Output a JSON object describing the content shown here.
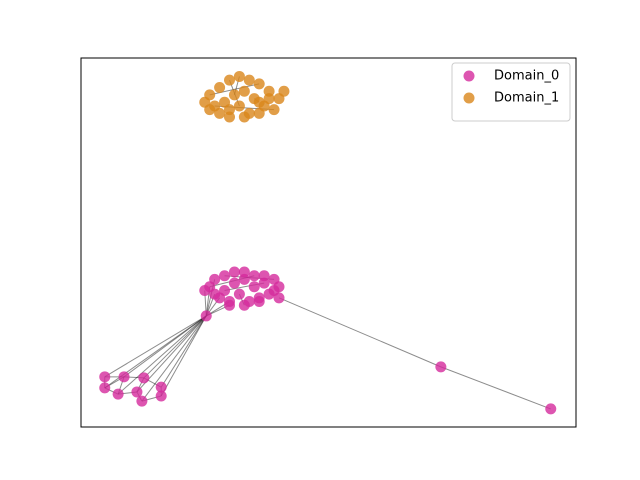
{
  "chart_data": {
    "type": "network",
    "xlim": [
      0,
      1
    ],
    "ylim": [
      0,
      1
    ],
    "legend": "upper right",
    "series": [
      {
        "name": "Domain_0",
        "color": "#d42a9c",
        "x": [
          0.26,
          0.27,
          0.29,
          0.31,
          0.33,
          0.35,
          0.37,
          0.39,
          0.4,
          0.27,
          0.29,
          0.31,
          0.33,
          0.35,
          0.37,
          0.39,
          0.28,
          0.3,
          0.32,
          0.34,
          0.36,
          0.38,
          0.3,
          0.33,
          0.36,
          0.25,
          0.4,
          0.253,
          0.048,
          0.048,
          0.087,
          0.075,
          0.127,
          0.113,
          0.123,
          0.162,
          0.162,
          0.727,
          0.949
        ],
        "y": [
          0.38,
          0.4,
          0.41,
          0.42,
          0.42,
          0.41,
          0.41,
          0.4,
          0.38,
          0.36,
          0.37,
          0.39,
          0.4,
          0.38,
          0.39,
          0.37,
          0.35,
          0.34,
          0.36,
          0.34,
          0.35,
          0.36,
          0.33,
          0.33,
          0.34,
          0.37,
          0.35,
          0.301,
          0.136,
          0.106,
          0.136,
          0.089,
          0.133,
          0.095,
          0.07,
          0.108,
          0.084,
          0.163,
          0.049
        ],
        "edges": [
          [
            27,
            28
          ],
          [
            27,
            29
          ],
          [
            27,
            30
          ],
          [
            27,
            31
          ],
          [
            27,
            32
          ],
          [
            27,
            33
          ],
          [
            27,
            34
          ],
          [
            27,
            35
          ],
          [
            27,
            36
          ],
          [
            27,
            0
          ],
          [
            27,
            1
          ],
          [
            27,
            9
          ],
          [
            27,
            16
          ],
          [
            27,
            17
          ],
          [
            27,
            22
          ],
          [
            27,
            25
          ],
          [
            28,
            30
          ],
          [
            28,
            29
          ],
          [
            30,
            32
          ],
          [
            29,
            31
          ],
          [
            31,
            33
          ],
          [
            32,
            35
          ],
          [
            33,
            34
          ],
          [
            35,
            36
          ],
          [
            30,
            31
          ],
          [
            32,
            33
          ],
          [
            34,
            36
          ],
          [
            29,
            30
          ],
          [
            26,
            37
          ],
          [
            37,
            38
          ],
          [
            0,
            5
          ],
          [
            2,
            7
          ],
          [
            10,
            14
          ],
          [
            18,
            23
          ]
        ]
      },
      {
        "name": "Domain_1",
        "color": "#d9861a",
        "x": [
          0.26,
          0.28,
          0.3,
          0.32,
          0.34,
          0.36,
          0.38,
          0.4,
          0.27,
          0.29,
          0.31,
          0.33,
          0.35,
          0.37,
          0.39,
          0.26,
          0.28,
          0.3,
          0.32,
          0.34,
          0.36,
          0.38,
          0.3,
          0.33,
          0.36,
          0.41,
          0.25
        ],
        "y": [
          0.9,
          0.92,
          0.94,
          0.95,
          0.94,
          0.93,
          0.91,
          0.89,
          0.87,
          0.88,
          0.9,
          0.91,
          0.89,
          0.87,
          0.86,
          0.86,
          0.85,
          0.86,
          0.87,
          0.85,
          0.88,
          0.89,
          0.84,
          0.84,
          0.85,
          0.91,
          0.88
        ],
        "edges": [
          [
            0,
            5
          ],
          [
            3,
            10
          ],
          [
            8,
            14
          ],
          [
            12,
            20
          ],
          [
            2,
            18
          ]
        ]
      }
    ]
  }
}
